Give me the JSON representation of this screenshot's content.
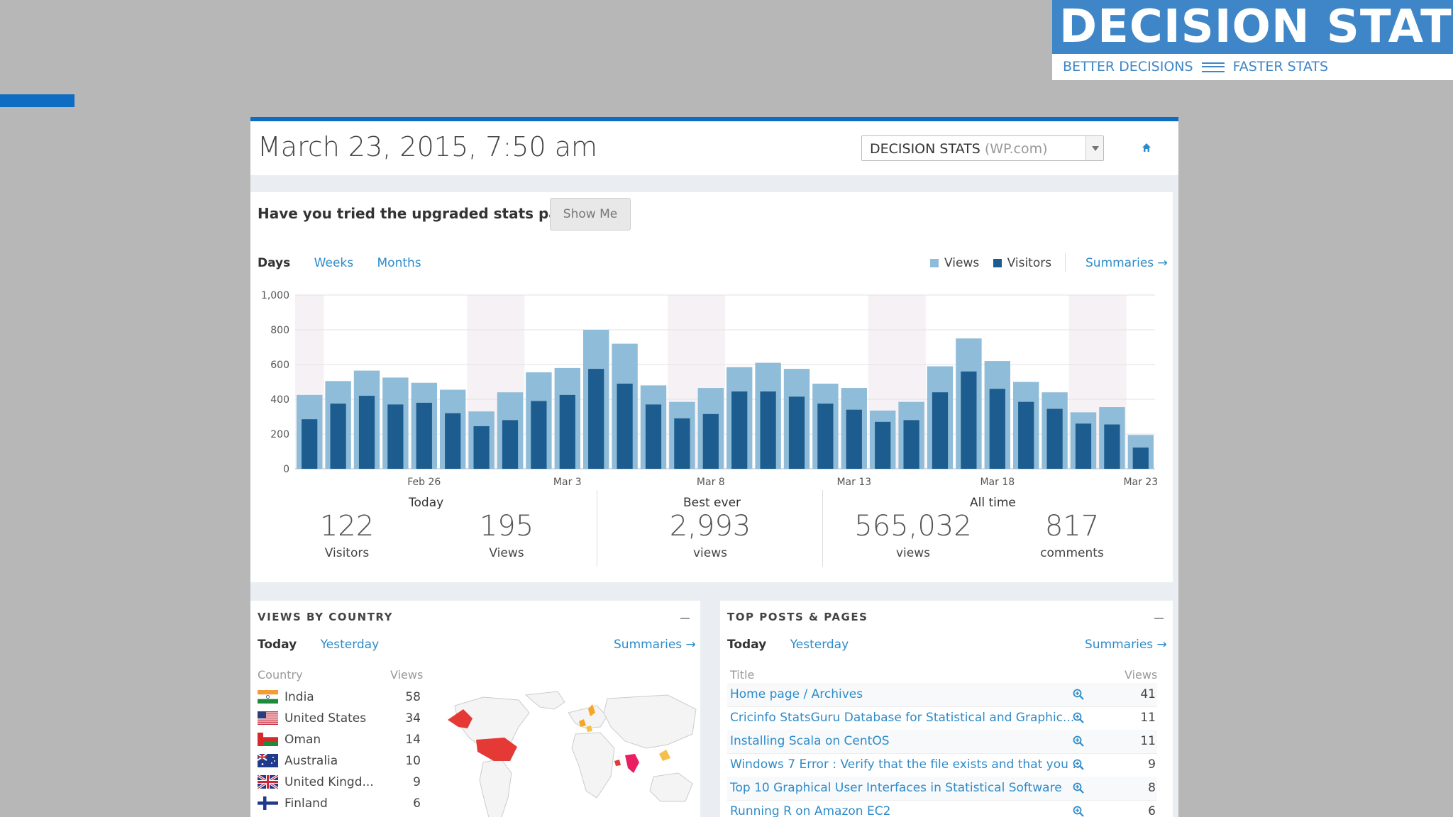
{
  "logo": {
    "title": "DECISION STATS",
    "tagline_left": "BETTER DECISIONS",
    "tagline_right": "FASTER STATS"
  },
  "header": {
    "date": "March 23, 2015, 7:50 am",
    "site_name": "DECISION STATS",
    "site_suffix": "(WP.com)"
  },
  "upgrade": {
    "prompt": "Have you tried the upgraded stats page?",
    "button": "Show Me"
  },
  "period_tabs": [
    "Days",
    "Weeks",
    "Months"
  ],
  "legend": {
    "views": "Views",
    "visitors": "Visitors",
    "summaries": "Summaries"
  },
  "colors": {
    "views": "#8fbcd8",
    "visitors": "#1c5c8e",
    "accent": "#0e6cc2",
    "link": "#2e8bc9"
  },
  "chart_data": {
    "type": "bar",
    "ylim": [
      0,
      1000
    ],
    "y_ticks": [
      "0",
      "200",
      "400",
      "600",
      "800",
      "1,000"
    ],
    "x_tick_labels": [
      "Feb 26",
      "Mar 3",
      "Mar 8",
      "Mar 13",
      "Mar 18",
      "Mar 23"
    ],
    "x_tick_indices": [
      4,
      9,
      14,
      19,
      24,
      29
    ],
    "weekend_groups": [
      [
        0
      ],
      [
        6,
        7
      ],
      [
        13,
        14
      ],
      [
        20,
        21
      ],
      [
        27,
        28
      ]
    ],
    "series": [
      {
        "name": "Views",
        "values": [
          425,
          505,
          565,
          525,
          495,
          455,
          330,
          440,
          555,
          580,
          800,
          720,
          480,
          385,
          465,
          585,
          610,
          575,
          490,
          465,
          335,
          385,
          590,
          750,
          620,
          500,
          440,
          325,
          355,
          195
        ]
      },
      {
        "name": "Visitors",
        "values": [
          285,
          375,
          420,
          370,
          380,
          320,
          245,
          280,
          390,
          425,
          575,
          490,
          370,
          290,
          315,
          445,
          445,
          415,
          375,
          340,
          270,
          280,
          440,
          560,
          460,
          385,
          345,
          260,
          255,
          122
        ]
      }
    ]
  },
  "stats": {
    "today_label": "Today",
    "visitors": "122",
    "visitors_label": "Visitors",
    "views": "195",
    "views_label": "Views",
    "best_label": "Best ever",
    "best": "2,993",
    "best_unit": "views",
    "alltime_label": "All time",
    "alltime_views": "565,032",
    "alltime_views_unit": "views",
    "alltime_comments": "817",
    "alltime_comments_unit": "comments"
  },
  "countries": {
    "title": "VIEWS BY COUNTRY",
    "tabs": [
      "Today",
      "Yesterday"
    ],
    "summaries": "Summaries",
    "col_country": "Country",
    "col_views": "Views",
    "rows": [
      {
        "name": "India",
        "views": "58",
        "flag": "india"
      },
      {
        "name": "United States",
        "views": "34",
        "flag": "us"
      },
      {
        "name": "Oman",
        "views": "14",
        "flag": "oman"
      },
      {
        "name": "Australia",
        "views": "10",
        "flag": "australia"
      },
      {
        "name": "United Kingd...",
        "views": "9",
        "flag": "uk"
      },
      {
        "name": "Finland",
        "views": "6",
        "flag": "finland"
      }
    ]
  },
  "top_posts": {
    "title": "TOP POSTS & PAGES",
    "tabs": [
      "Today",
      "Yesterday"
    ],
    "summaries": "Summaries",
    "col_title": "Title",
    "col_views": "Views",
    "rows": [
      {
        "title": "Home page / Archives",
        "views": "41"
      },
      {
        "title": "Cricinfo StatsGuru Database for Statistical and Graphic...",
        "views": "11"
      },
      {
        "title": "Installing Scala on CentOS",
        "views": "11"
      },
      {
        "title": "Windows 7 Error : Verify that the file exists and that you ...",
        "views": "9"
      },
      {
        "title": "Top 10 Graphical User Interfaces in Statistical Software",
        "views": "8"
      },
      {
        "title": "Running R on Amazon EC2",
        "views": "6"
      }
    ]
  }
}
